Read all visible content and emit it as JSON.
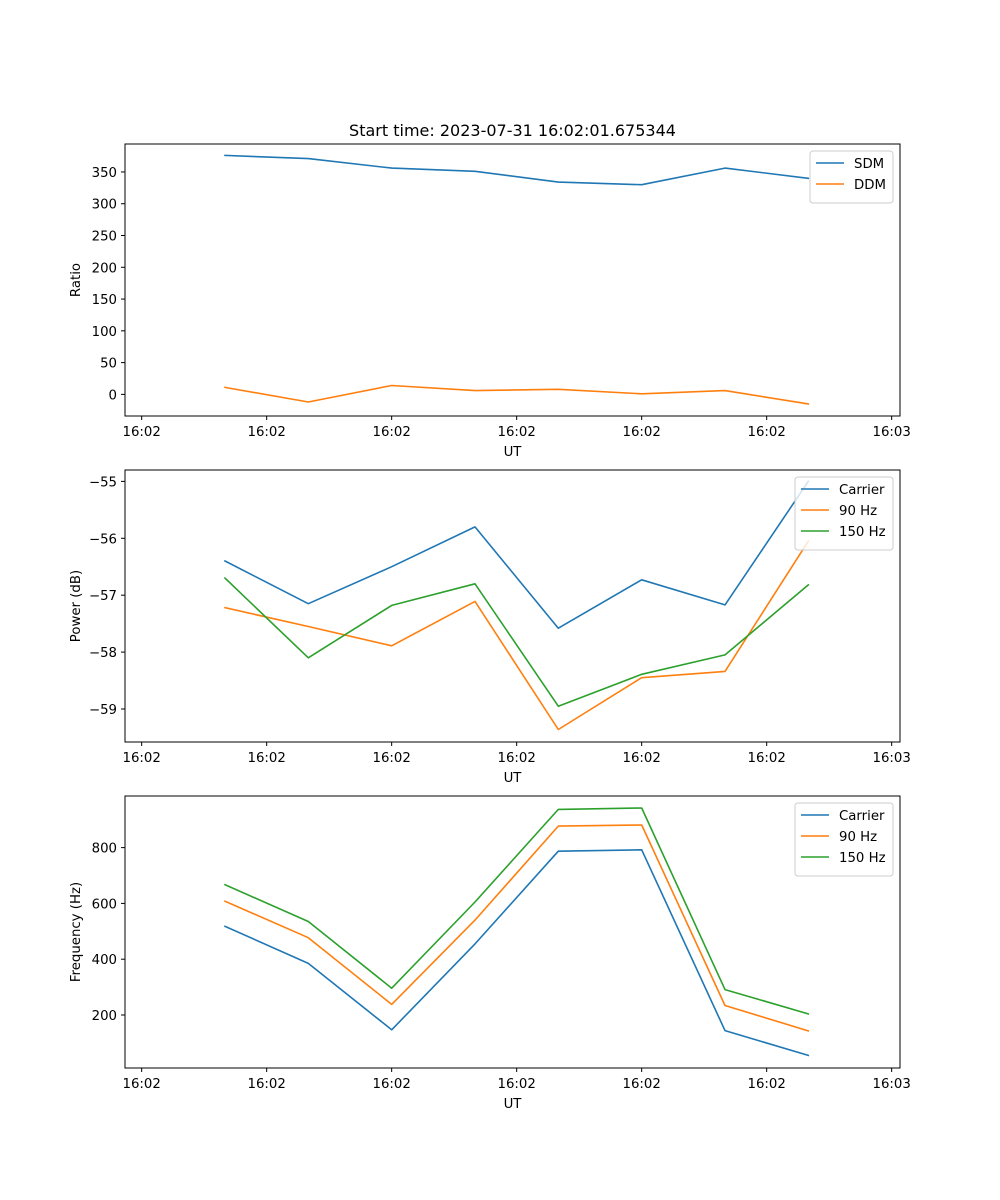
{
  "figure_title": "Start time: 2023-07-31 16:02:01.675344",
  "chart_data": [
    {
      "type": "line",
      "title": "Start time: 2023-07-31 16:02:01.675344",
      "xlabel": "UT",
      "ylabel": "Ratio",
      "x_tick_labels": [
        "16:02",
        "16:02",
        "16:02",
        "16:02",
        "16:02",
        "16:02",
        "16:03"
      ],
      "xlim": [
        -0.2,
        9.1
      ],
      "ylim": [
        -34,
        394
      ],
      "y_ticks": [
        0,
        50,
        100,
        150,
        200,
        250,
        300,
        350
      ],
      "x": [
        1,
        2,
        3,
        4,
        5,
        6,
        7,
        8
      ],
      "legend_position": "upper-right",
      "series": [
        {
          "name": "SDM",
          "color": "#1f77b4",
          "values": [
            376,
            371,
            356,
            351,
            334,
            330,
            356,
            340
          ]
        },
        {
          "name": "DDM",
          "color": "#ff7f0e",
          "values": [
            11,
            -12,
            14,
            6,
            8,
            1,
            6,
            -15
          ]
        }
      ]
    },
    {
      "type": "line",
      "title": "",
      "xlabel": "UT",
      "ylabel": "Power (dB)",
      "x_tick_labels": [
        "16:02",
        "16:02",
        "16:02",
        "16:02",
        "16:02",
        "16:02",
        "16:03"
      ],
      "xlim": [
        -0.2,
        9.1
      ],
      "ylim": [
        -59.58,
        -54.8
      ],
      "y_ticks": [
        -59,
        -58,
        -57,
        -56,
        -55
      ],
      "x": [
        1,
        2,
        3,
        4,
        5,
        6,
        7,
        8
      ],
      "legend_position": "upper-right",
      "series": [
        {
          "name": "Carrier",
          "color": "#1f77b4",
          "values": [
            -56.4,
            -57.15,
            -56.5,
            -55.8,
            -57.58,
            -56.73,
            -57.17,
            -55.0
          ]
        },
        {
          "name": "90 Hz",
          "color": "#ff7f0e",
          "values": [
            -57.22,
            -57.55,
            -57.89,
            -57.11,
            -59.36,
            -58.45,
            -58.34,
            -56.05
          ]
        },
        {
          "name": "150 Hz",
          "color": "#2ca02c",
          "values": [
            -56.7,
            -58.1,
            -57.18,
            -56.8,
            -58.95,
            -58.39,
            -58.05,
            -56.82
          ]
        }
      ]
    },
    {
      "type": "line",
      "title": "",
      "xlabel": "UT",
      "ylabel": "Frequency (Hz)",
      "x_tick_labels": [
        "16:02",
        "16:02",
        "16:02",
        "16:02",
        "16:02",
        "16:02",
        "16:03"
      ],
      "xlim": [
        -0.2,
        9.1
      ],
      "ylim": [
        10,
        985
      ],
      "y_ticks": [
        200,
        400,
        600,
        800
      ],
      "x": [
        1,
        2,
        3,
        4,
        5,
        6,
        7,
        8
      ],
      "legend_position": "upper-right",
      "series": [
        {
          "name": "Carrier",
          "color": "#1f77b4",
          "values": [
            518,
            385,
            147,
            455,
            787,
            792,
            144,
            55
          ]
        },
        {
          "name": "90 Hz",
          "color": "#ff7f0e",
          "values": [
            608,
            477,
            238,
            540,
            877,
            881,
            234,
            143
          ]
        },
        {
          "name": "150 Hz",
          "color": "#2ca02c",
          "values": [
            667,
            535,
            296,
            605,
            937,
            942,
            291,
            204
          ]
        }
      ]
    }
  ]
}
